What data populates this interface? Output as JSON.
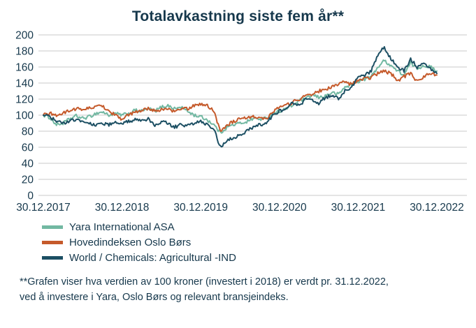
{
  "footnote": {
    "line1": "**Grafen viser hva verdien av 100 kroner (investert i 2018) er verdt pr. 31.12.2022,",
    "line2": "ved å investere i Yara, Oslo Børs og relevant bransjeindeks."
  },
  "chart_data": {
    "type": "line",
    "title": "Totalavkastning siste fem år**",
    "x_tick_labels": [
      "30.12.2017",
      "30.12.2018",
      "30.12.2019",
      "30.12.2020",
      "30.12.2021",
      "30.12.2022"
    ],
    "x_unit": "months since 30.12.2017",
    "ylim": [
      0,
      200
    ],
    "y_tick_step": 20,
    "grid": "horizontal",
    "legend_position": "bottom-left",
    "axis_color": "#c8c8c8",
    "text_color": "#16384c",
    "series": [
      {
        "name": "Yara International ASA",
        "color": "#72b8a2",
        "values": [
          100,
          97,
          88,
          90,
          95,
          99,
          96,
          98,
          102,
          104,
          100,
          102,
          100,
          102,
          106,
          105,
          108,
          105,
          110,
          112,
          108,
          110,
          105,
          100,
          98,
          94,
          88,
          78,
          85,
          88,
          90,
          92,
          96,
          95,
          96,
          102,
          105,
          108,
          112,
          118,
          120,
          125,
          122,
          124,
          128,
          126,
          135,
          138,
          142,
          145,
          148,
          160,
          168,
          162,
          155,
          150,
          165,
          158,
          162,
          160,
          155
        ]
      },
      {
        "name": "Hovedindeksen Oslo Børs",
        "color": "#c55a2b",
        "values": [
          100,
          102,
          100,
          102,
          106,
          108,
          107,
          109,
          110,
          112,
          105,
          100,
          95,
          100,
          104,
          105,
          109,
          105,
          107,
          108,
          104,
          108,
          108,
          112,
          114,
          112,
          105,
          80,
          88,
          92,
          95,
          96,
          99,
          97,
          95,
          105,
          110,
          112,
          116,
          120,
          124,
          126,
          130,
          132,
          135,
          138,
          142,
          138,
          143,
          145,
          147,
          152,
          155,
          152,
          143,
          148,
          152,
          142,
          148,
          152,
          150
        ]
      },
      {
        "name": "World / Chemicals: Agricultural -IND",
        "color": "#1c4f63",
        "values": [
          100,
          98,
          92,
          90,
          92,
          95,
          92,
          90,
          88,
          90,
          88,
          92,
          90,
          92,
          94,
          92,
          95,
          88,
          92,
          90,
          85,
          88,
          87,
          90,
          92,
          88,
          82,
          60,
          68,
          72,
          75,
          80,
          85,
          88,
          90,
          100,
          105,
          108,
          115,
          112,
          120,
          118,
          115,
          122,
          125,
          120,
          130,
          135,
          148,
          150,
          155,
          175,
          185,
          170,
          160,
          155,
          170,
          160,
          165,
          158,
          152
        ]
      }
    ]
  }
}
